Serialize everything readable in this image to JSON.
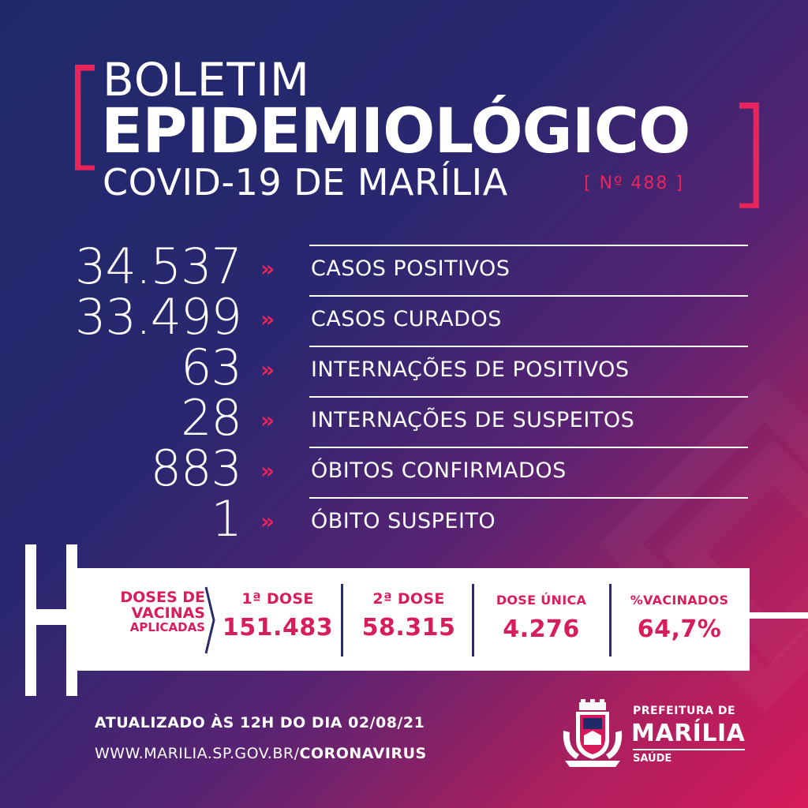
{
  "header": {
    "line1": "BOLETIM",
    "line2": "EPIDEMIOLÓGICO",
    "line3": "COVID-19 DE MARÍLIA",
    "edition": "[ Nº 488 ]",
    "bracket_left": "[",
    "bracket_right": "]"
  },
  "stats": [
    {
      "value": "34.537",
      "label": "CASOS POSITIVOS"
    },
    {
      "value": "33.499",
      "label": "CASOS CURADOS"
    },
    {
      "value": "63",
      "label": "INTERNAÇÕES DE POSITIVOS"
    },
    {
      "value": "28",
      "label": "INTERNAÇÕES DE SUSPEITOS"
    },
    {
      "value": "883",
      "label": "ÓBITOS CONFIRMADOS"
    },
    {
      "value": "1",
      "label": "ÓBITO SUSPEITO"
    }
  ],
  "arrow_glyph": "»",
  "vaccines": {
    "label_line1": "DOSES DE",
    "label_line2": "VACINAS",
    "label_line3": "APLICADAS",
    "items": [
      {
        "label": "1ª DOSE",
        "value": "151.483"
      },
      {
        "label": "2ª DOSE",
        "value": "58.315"
      },
      {
        "label": "DOSE ÚNICA",
        "value": "4.276"
      },
      {
        "label": "%VACINADOS",
        "value": "64,7%"
      }
    ]
  },
  "footer": {
    "updated": "ATUALIZADO ÀS 12H DO DIA 02/08/21",
    "url_prefix": "WWW.MARILIA.SP.GOV.BR/",
    "url_suffix": "CORONAVIRUS"
  },
  "brand": {
    "line1": "PREFEITURA DE",
    "line2": "MARÍLIA",
    "line3": "SAÚDE"
  },
  "colors": {
    "accent": "#e8245a",
    "navy": "#1f2a6b",
    "magenta": "#d6195a"
  },
  "icons": [
    "crest-icon",
    "chevron-right-icon"
  ]
}
